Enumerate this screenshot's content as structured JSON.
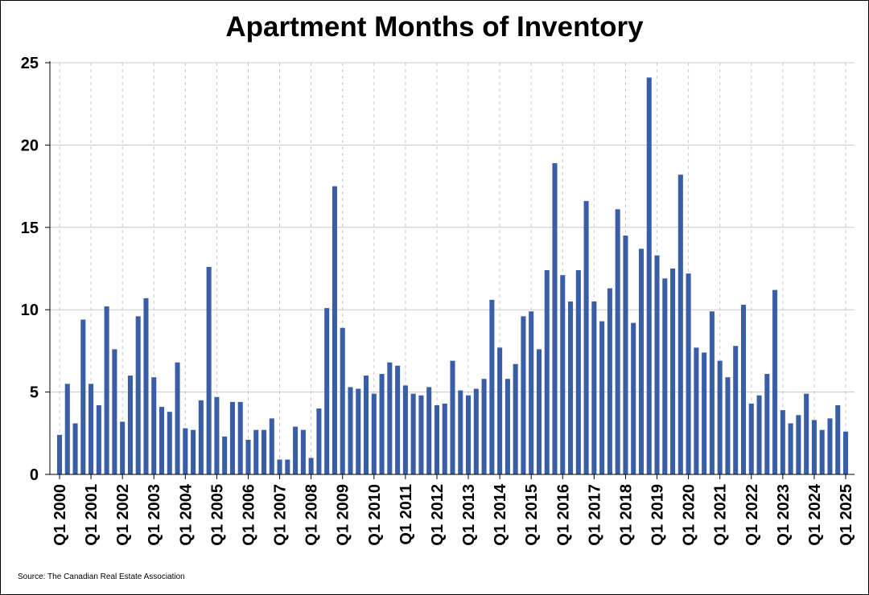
{
  "chart_data": {
    "type": "bar",
    "title": "Apartment Months of Inventory",
    "source": "Source: The Canadian Real Estate Association",
    "ylim": [
      0,
      25
    ],
    "yticks": [
      0,
      5,
      10,
      15,
      20,
      25
    ],
    "grid": true,
    "bar_color": "#3A5DA8",
    "x_tick_labels": [
      "Q1 2000",
      "Q1 2001",
      "Q1 2002",
      "Q1 2003",
      "Q1 2004",
      "Q1 2005",
      "Q1 2006",
      "Q1 2007",
      "Q1 2008",
      "Q1 2009",
      "Q1 2010",
      "Q1 2011",
      "Q1 2012",
      "Q1 2013",
      "Q1 2014",
      "Q1 2015",
      "Q1 2016",
      "Q1 2017",
      "Q1 2018",
      "Q1 2019",
      "Q1 2020",
      "Q1 2021",
      "Q1 2022",
      "Q1 2023",
      "Q1 2024",
      "Q1 2025"
    ],
    "categories": [
      "Q1 2000",
      "Q2 2000",
      "Q3 2000",
      "Q4 2000",
      "Q1 2001",
      "Q2 2001",
      "Q3 2001",
      "Q4 2001",
      "Q1 2002",
      "Q2 2002",
      "Q3 2002",
      "Q4 2002",
      "Q1 2003",
      "Q2 2003",
      "Q3 2003",
      "Q4 2003",
      "Q1 2004",
      "Q2 2004",
      "Q3 2004",
      "Q4 2004",
      "Q1 2005",
      "Q2 2005",
      "Q3 2005",
      "Q4 2005",
      "Q1 2006",
      "Q2 2006",
      "Q3 2006",
      "Q4 2006",
      "Q1 2007",
      "Q2 2007",
      "Q3 2007",
      "Q4 2007",
      "Q1 2008",
      "Q2 2008",
      "Q3 2008",
      "Q4 2008",
      "Q1 2009",
      "Q2 2009",
      "Q3 2009",
      "Q4 2009",
      "Q1 2010",
      "Q2 2010",
      "Q3 2010",
      "Q4 2010",
      "Q1 2011",
      "Q2 2011",
      "Q3 2011",
      "Q4 2011",
      "Q1 2012",
      "Q2 2012",
      "Q3 2012",
      "Q4 2012",
      "Q1 2013",
      "Q2 2013",
      "Q3 2013",
      "Q4 2013",
      "Q1 2014",
      "Q2 2014",
      "Q3 2014",
      "Q4 2014",
      "Q1 2015",
      "Q2 2015",
      "Q3 2015",
      "Q4 2015",
      "Q1 2016",
      "Q2 2016",
      "Q3 2016",
      "Q4 2016",
      "Q1 2017",
      "Q2 2017",
      "Q3 2017",
      "Q4 2017",
      "Q1 2018",
      "Q2 2018",
      "Q3 2018",
      "Q4 2018",
      "Q1 2019",
      "Q2 2019",
      "Q3 2019",
      "Q4 2019",
      "Q1 2020",
      "Q2 2020",
      "Q3 2020",
      "Q4 2020",
      "Q1 2021",
      "Q2 2021",
      "Q3 2021",
      "Q4 2021",
      "Q1 2022",
      "Q2 2022",
      "Q3 2022",
      "Q4 2022",
      "Q1 2023",
      "Q2 2023",
      "Q3 2023",
      "Q4 2023",
      "Q1 2024",
      "Q2 2024",
      "Q3 2024",
      "Q4 2024",
      "Q1 2025"
    ],
    "values": [
      2.4,
      5.5,
      3.1,
      9.4,
      5.5,
      4.2,
      10.2,
      7.6,
      3.2,
      6.0,
      9.6,
      10.7,
      5.9,
      4.1,
      3.8,
      6.8,
      2.8,
      2.7,
      4.5,
      12.6,
      4.7,
      2.3,
      4.4,
      4.4,
      2.1,
      2.7,
      2.7,
      3.4,
      0.9,
      0.9,
      2.9,
      2.7,
      1.0,
      4.0,
      10.1,
      17.5,
      8.9,
      5.3,
      5.2,
      6.0,
      4.9,
      6.1,
      6.8,
      6.6,
      5.4,
      4.9,
      4.8,
      5.3,
      4.2,
      4.3,
      6.9,
      5.1,
      4.8,
      5.2,
      5.8,
      10.6,
      7.7,
      5.8,
      6.7,
      9.6,
      9.9,
      7.6,
      12.4,
      18.9,
      12.1,
      10.5,
      12.4,
      16.6,
      10.5,
      9.3,
      11.3,
      16.1,
      14.5,
      9.2,
      13.7,
      24.1,
      13.3,
      11.9,
      12.5,
      18.2,
      12.2,
      7.7,
      7.4,
      9.9,
      6.9,
      5.9,
      7.8,
      10.3,
      4.3,
      4.8,
      6.1,
      11.2,
      3.9,
      3.1,
      3.6,
      4.9,
      3.3,
      2.7,
      3.4,
      4.2,
      2.6
    ]
  }
}
